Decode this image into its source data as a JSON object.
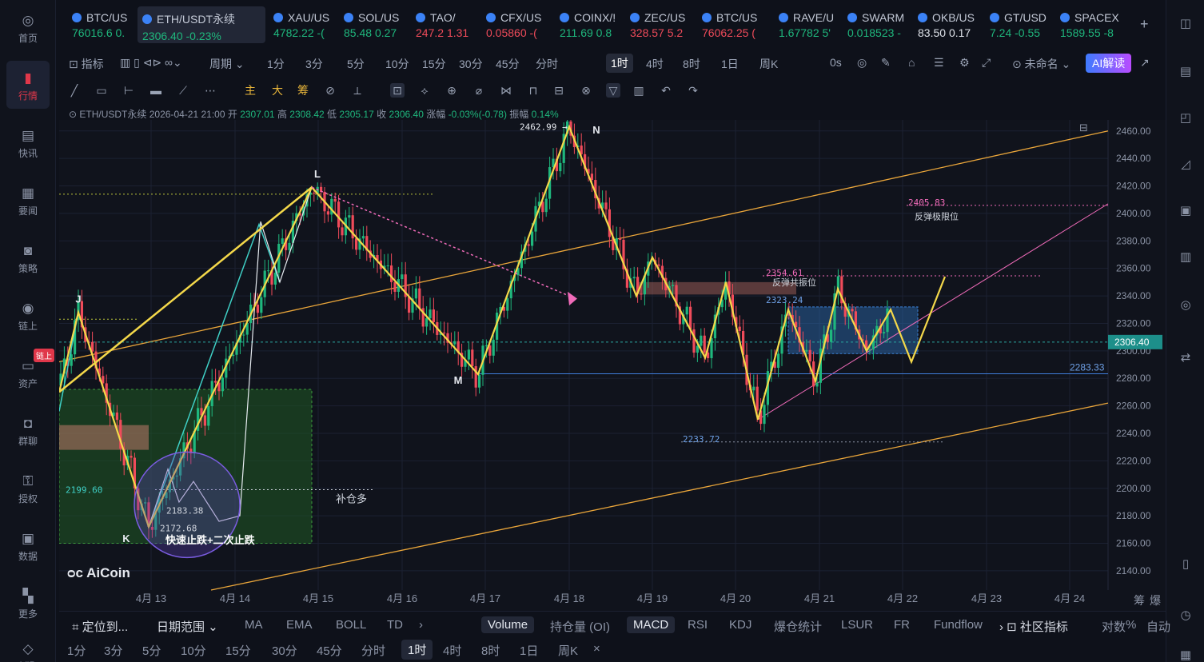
{
  "nav": [
    {
      "label": "首页",
      "icon": "home-icon"
    },
    {
      "label": "行情",
      "icon": "bar-chart-icon"
    },
    {
      "label": "快讯",
      "icon": "news-icon"
    },
    {
      "label": "要闻",
      "icon": "document-icon"
    },
    {
      "label": "策略",
      "icon": "robot-icon"
    },
    {
      "label": "链上",
      "icon": "chain-icon"
    },
    {
      "label": "资产",
      "icon": "wallet-icon"
    },
    {
      "label": "群聊",
      "icon": "chat-icon"
    },
    {
      "label": "授权",
      "icon": "key-icon"
    },
    {
      "label": "数据",
      "icon": "data-icon"
    },
    {
      "label": "更多",
      "icon": "grid-icon"
    },
    {
      "label": "VIP",
      "icon": "diamond-icon"
    }
  ],
  "nav_badge": "链上",
  "tickers": [
    {
      "name": "BTC/US",
      "price": "76016.6",
      "chg": "0.",
      "dir": "up"
    },
    {
      "name": "ETH/USDT永续",
      "price": "2306.40",
      "chg": "-0.23%",
      "dir": "up"
    },
    {
      "name": "XAU/US",
      "price": "4782.22",
      "chg": "-(",
      "dir": "up"
    },
    {
      "name": "SOL/US",
      "price": "85.48",
      "chg": "0.27",
      "dir": "up"
    },
    {
      "name": "TAO/",
      "price": "247.2",
      "chg": "1.31",
      "dir": "dn"
    },
    {
      "name": "CFX/US",
      "price": "0.05860",
      "chg": "-(",
      "dir": "dn"
    },
    {
      "name": "COINX/!",
      "price": "211.69",
      "chg": "0.8",
      "dir": "up"
    },
    {
      "name": "ZEC/US",
      "price": "328.57",
      "chg": "5.2",
      "dir": "dn"
    },
    {
      "name": "BTC/US",
      "price": "76062.25",
      "chg": "(",
      "dir": "dn"
    },
    {
      "name": "RAVE/U",
      "price": "1.67782",
      "chg": "5'",
      "dir": "up"
    },
    {
      "name": "SWARM",
      "price": "0.018523",
      "chg": "-",
      "dir": "up"
    },
    {
      "name": "OKB/US",
      "price": "83.50",
      "chg": "0.17",
      "dir": "wh"
    },
    {
      "name": "GT/USD",
      "price": "7.24",
      "chg": "-0.55",
      "dir": "up"
    },
    {
      "name": "SPACEX",
      "price": "1589.55",
      "chg": "-8",
      "dir": "up"
    }
  ],
  "add_ticker": "+",
  "topbar": {
    "indicator": "指标",
    "period": "周期",
    "periods": [
      "1分",
      "3分",
      "5分",
      "10分",
      "15分",
      "30分",
      "45分",
      "分时",
      "1时",
      "4时",
      "8时",
      "1日",
      "周K"
    ],
    "active": "1时",
    "countdown": "0s",
    "layout": "未命名",
    "ai": "AI解读"
  },
  "ohlc": {
    "symbol": "ETH/USDT永续",
    "time": "2026-04-21 21:00",
    "open_l": "开",
    "open": "2307.01",
    "high_l": "高",
    "high": "2308.42",
    "low_l": "低",
    "low": "2305.17",
    "close_l": "收",
    "close": "2306.40",
    "chg_l": "涨幅",
    "chg": "-0.03%(-0.78)",
    "amp_l": "振幅",
    "amp": "0.14%"
  },
  "toolbar_labels": {
    "main": "主",
    "big": "大",
    "chip": "筹"
  },
  "chart_data": {
    "type": "candlestick",
    "y_ticks": [
      2460,
      2440,
      2420,
      2400,
      2380,
      2360,
      2340,
      2320,
      2300,
      2280,
      2260,
      2240,
      2220,
      2200,
      2180,
      2160,
      2140
    ],
    "ylim": [
      2126,
      2468
    ],
    "x_ticks": [
      "4月 13",
      "4月 14",
      "4月 15",
      "4月 16",
      "4月 17",
      "4月 18",
      "4月 19",
      "4月 20",
      "4月 21",
      "4月 22",
      "4月 23",
      "4月 24"
    ],
    "last_price": "2306.40",
    "right_price_label": "2283.33",
    "price_labels": [
      {
        "text": "2462.99 →",
        "value": 2462.99
      },
      {
        "text": "2405.83",
        "value": 2405.83
      },
      {
        "text": "2354.61",
        "value": 2354.61
      },
      {
        "text": "2323.24",
        "value": 2323.24
      },
      {
        "text": "2233.72",
        "value": 2233.72
      },
      {
        "text": "2199.60",
        "value": 2199.6
      },
      {
        "text": "2183.38",
        "value": 2183.38
      },
      {
        "text": "2172.68",
        "value": 2172.68
      }
    ],
    "annotations": [
      "反弹极限位",
      "反弹共振位",
      "补仓多",
      "快速止跌+二次止跌"
    ],
    "wave_points": [
      {
        "label": "J",
        "value": 2328
      },
      {
        "label": "K",
        "value": 2172
      },
      {
        "label": "L",
        "value": 2419
      },
      {
        "label": "M",
        "value": 2283
      },
      {
        "label": "N",
        "value": 2463
      }
    ],
    "zigzag_values": [
      2270,
      2328,
      2172,
      2419,
      2283,
      2463,
      2340,
      2368,
      2295,
      2350,
      2250,
      2330,
      2278,
      2345,
      2300,
      2330,
      2292,
      2354
    ]
  },
  "legend": "AiCoin",
  "corner_labels": [
    "筹",
    "爆"
  ],
  "bottom": {
    "locate": "定位到...",
    "range": "日期范围",
    "indicators": [
      "MA",
      "EMA",
      "BOLL",
      "TD"
    ],
    "subs": [
      "Volume",
      "持仓量 (OI)",
      "MACD",
      "RSI",
      "KDJ",
      "爆仓统计",
      "LSUR",
      "FR",
      "Fundflow"
    ],
    "community": "社区指标",
    "right": [
      "对数",
      "%",
      "自动"
    ]
  },
  "bottom_periods": [
    "1分",
    "3分",
    "5分",
    "10分",
    "15分",
    "30分",
    "45分",
    "分时",
    "1时",
    "4时",
    "8时",
    "1日",
    "周K"
  ],
  "bottom_active": "1时",
  "colors": {
    "up": "#1fb77d",
    "down": "#ef4b5a",
    "zigzag": "#f4d84a",
    "channel": "#e9a53a",
    "pink": "#f06bb9",
    "blue": "#3f7ddc"
  }
}
